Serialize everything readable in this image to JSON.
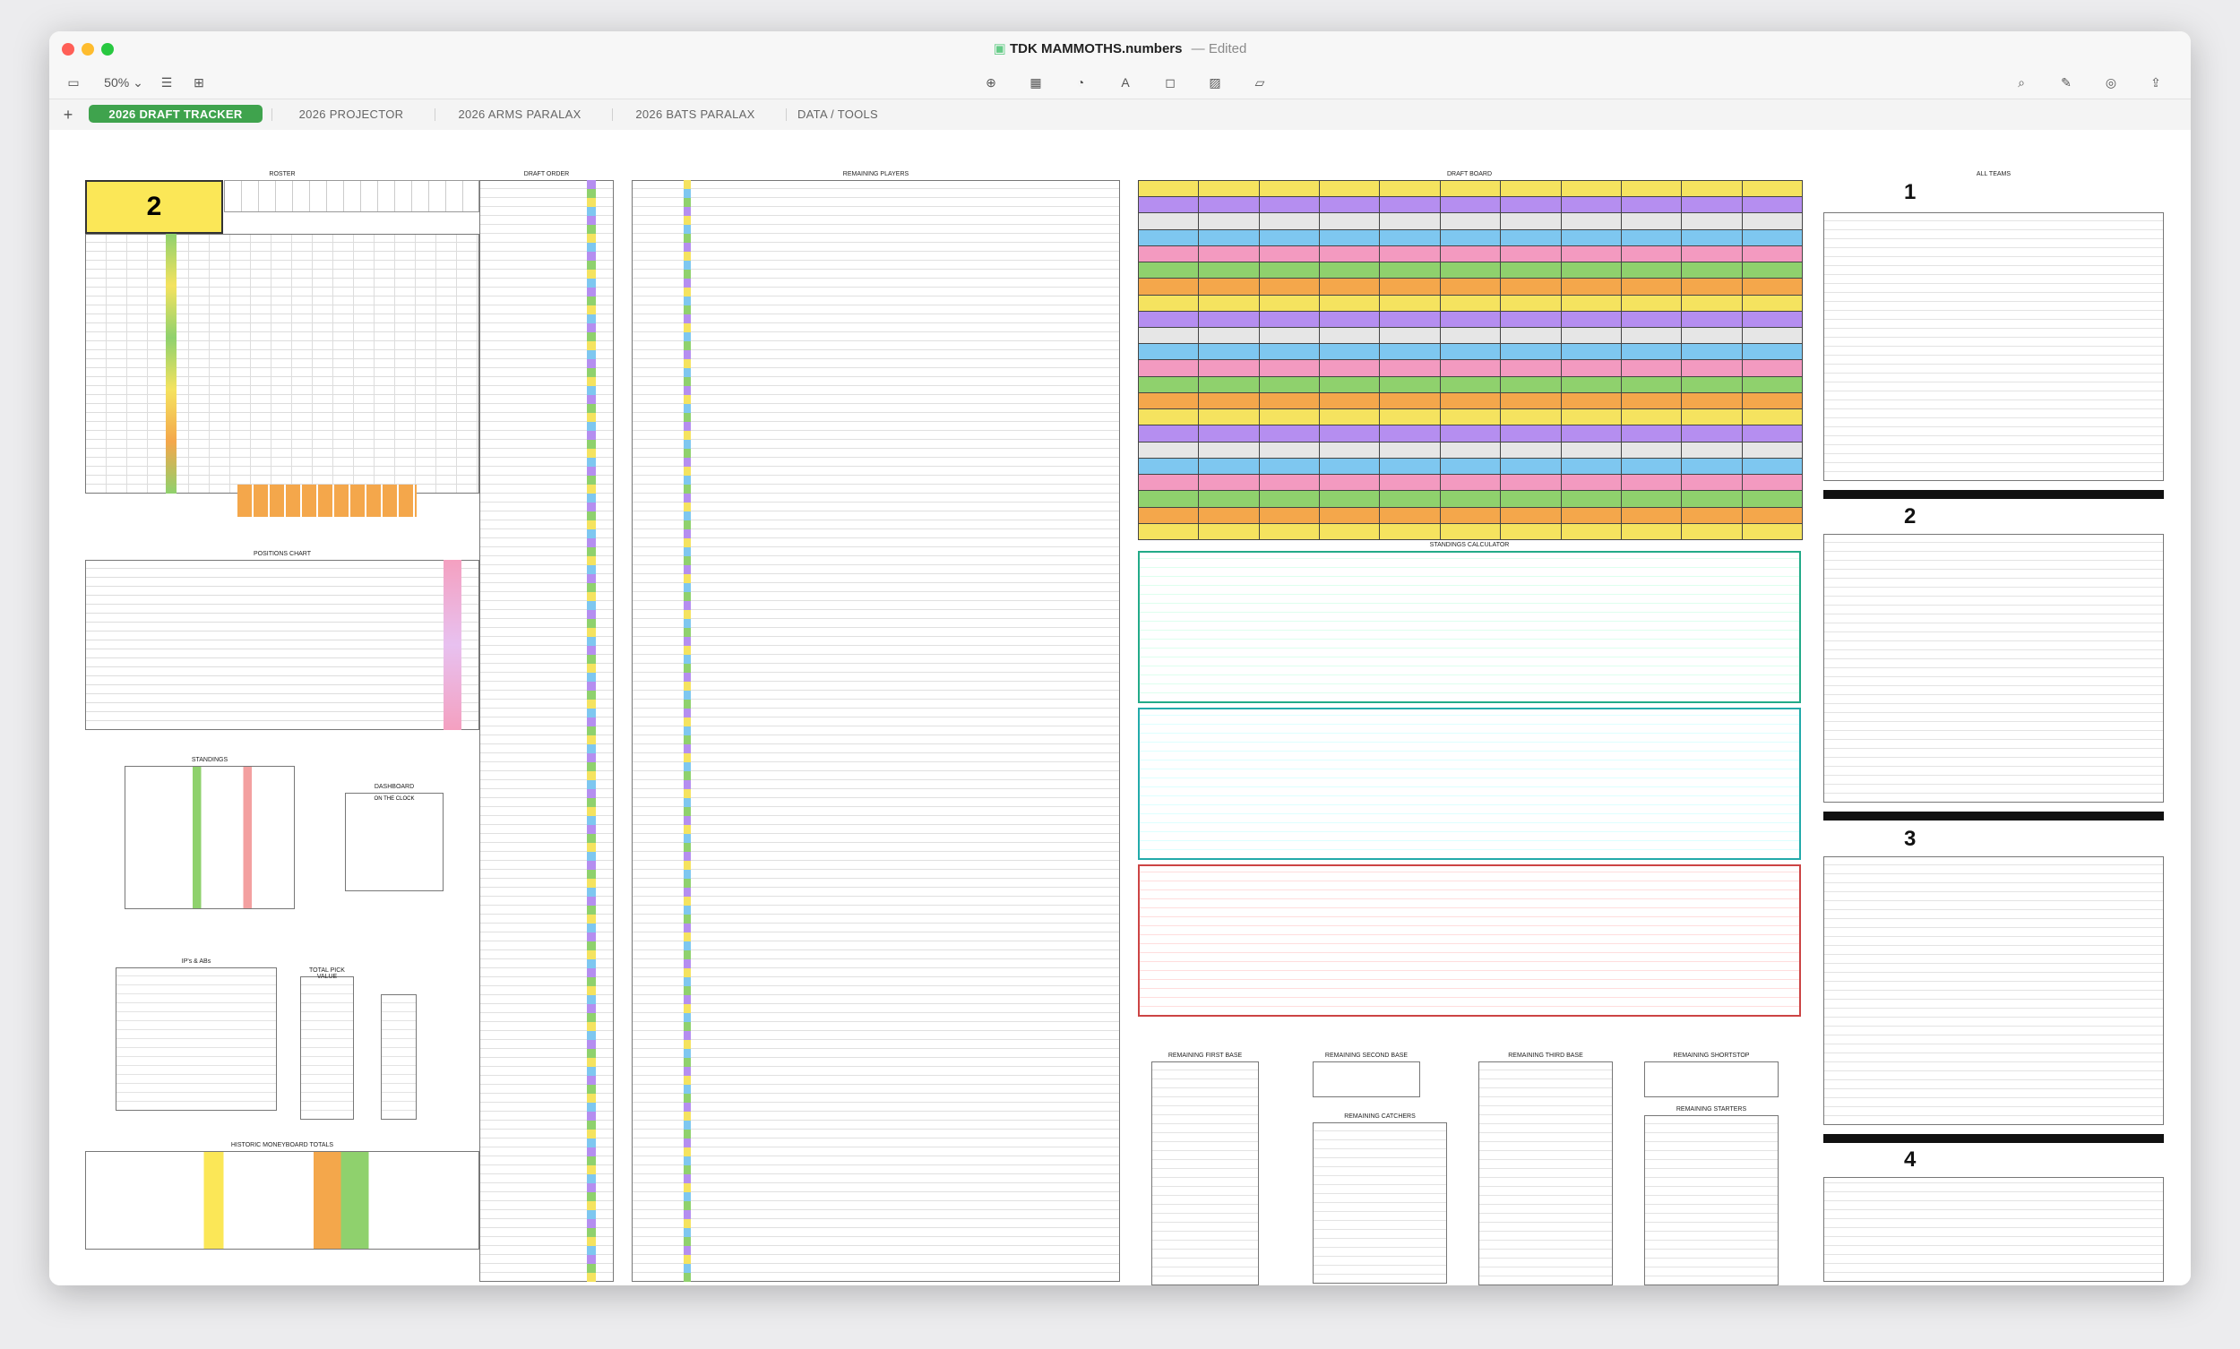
{
  "window": {
    "title": "TDK MAMMOTHS.numbers",
    "status": "— Edited",
    "zoom": "50%",
    "traffic_lights": {
      "close": "#ff5f57",
      "minimize": "#febc2e",
      "zoom": "#28c840"
    }
  },
  "tabs": [
    {
      "label": "2026 DRAFT TRACKER",
      "active": true
    },
    {
      "label": "2026 PROJECTOR",
      "active": false
    },
    {
      "label": "2026 ARMS PARALAX",
      "active": false
    },
    {
      "label": "2026 BATS PARALAX",
      "active": false
    },
    {
      "label": "DATA / TOOLS",
      "active": false
    }
  ],
  "sheet": {
    "roster_title": "ROSTER",
    "roster_number": "2",
    "draft_order_title": "DRAFT ORDER",
    "remaining_players_title": "REMAINING PLAYERS",
    "draft_board_title": "DRAFT BOARD",
    "all_teams_title": "ALL TEAMS",
    "positions_chart_title": "POSITIONS CHART",
    "standings_title": "STANDINGS",
    "dashboard_title": "DASHBOARD",
    "ip_abs_title": "IP's & ABs",
    "total_pick_value_title": "TOTAL PICK VALUE",
    "historic_title": "HISTORIC MONEYBOARD TOTALS",
    "standings_calc_title": "STANDINGS CALCULATOR",
    "rem_first_base": "REMAINING FIRST BASE",
    "rem_second_base": "REMAINING SECOND BASE",
    "rem_third_base": "REMAINING THIRD BASE",
    "rem_shortstop": "REMAINING SHORTSTOP",
    "rem_catchers": "REMAINING CATCHERS",
    "rem_starters": "REMAINING STARTERS",
    "team_numbers": [
      "1",
      "2",
      "3",
      "4"
    ],
    "on_the_clock": "ON THE CLOCK"
  },
  "icons": {
    "sidebar": "sidebar-icon",
    "view": "view-icon",
    "add_category": "add-category-icon",
    "insert": "insert-icon",
    "table": "table-icon",
    "chart": "chart-icon",
    "text": "text-icon",
    "shape": "shape-icon",
    "media": "media-icon",
    "comment": "comment-icon",
    "search": "search-icon",
    "format": "format-brush-icon",
    "collaborate": "collaborate-icon",
    "share": "share-icon"
  }
}
